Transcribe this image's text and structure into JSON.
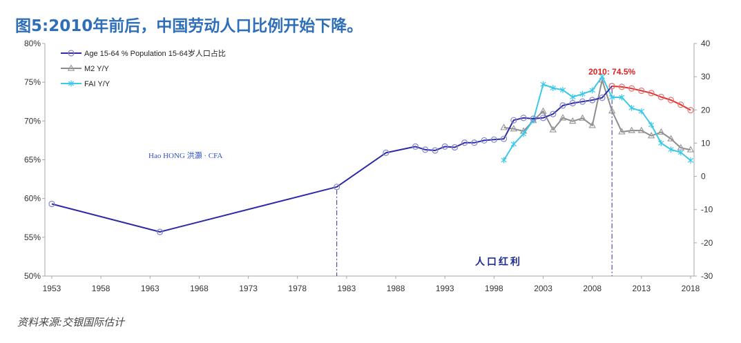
{
  "title": "图5:2010年前后，中国劳动人口比例开始下降。",
  "source": "资料来源:交银国际估计",
  "chart_data": {
    "type": "line",
    "xlim": [
      1952.3,
      2018.35
    ],
    "x_ticks": [
      "1953",
      "1958",
      "1963",
      "1968",
      "1973",
      "1978",
      "1983",
      "1988",
      "1993",
      "1998",
      "2003",
      "2008",
      "2013",
      "2018"
    ],
    "y_left": {
      "range": [
        50,
        80
      ],
      "ticks": [
        "80%",
        "75%",
        "70%",
        "65%",
        "60%",
        "55%",
        "50%"
      ]
    },
    "y_right": {
      "range": [
        -30,
        40
      ],
      "ticks": [
        "40",
        "30",
        "20",
        "10",
        "0",
        "-10",
        "-20",
        "-30"
      ]
    },
    "grid": false,
    "legend_position": "top-left",
    "series": [
      {
        "name": "Age 15-64 % Population 15-64岁人口占比",
        "axis": "left",
        "color": "#2b2ba8",
        "marker_color": "#8484cc",
        "marker": "circle",
        "points": [
          [
            1953,
            59.3
          ],
          [
            1964,
            55.7
          ],
          [
            1982,
            61.5
          ],
          [
            1987,
            65.9
          ],
          [
            1990,
            66.7
          ],
          [
            1991,
            66.3
          ],
          [
            1992,
            66.2
          ],
          [
            1993,
            66.7
          ],
          [
            1994,
            66.6
          ],
          [
            1995,
            67.2
          ],
          [
            1996,
            67.2
          ],
          [
            1997,
            67.5
          ],
          [
            1998,
            67.6
          ],
          [
            1999,
            67.7
          ],
          [
            2000,
            70.1
          ],
          [
            2001,
            70.4
          ],
          [
            2002,
            70.3
          ],
          [
            2003,
            70.4
          ],
          [
            2004,
            70.9
          ],
          [
            2005,
            72.0
          ],
          [
            2006,
            72.3
          ],
          [
            2007,
            72.5
          ],
          [
            2008,
            72.7
          ],
          [
            2009,
            73.0
          ],
          [
            2010,
            74.5
          ]
        ]
      },
      {
        "axis": "left",
        "color": "#e3322c",
        "marker_color": "#e57373",
        "marker": "circle",
        "points": [
          [
            2010,
            74.5
          ],
          [
            2011,
            74.4
          ],
          [
            2012,
            74.2
          ],
          [
            2013,
            73.9
          ],
          [
            2014,
            73.6
          ],
          [
            2015,
            73.1
          ],
          [
            2016,
            72.7
          ],
          [
            2017,
            72.1
          ],
          [
            2018,
            71.4
          ]
        ]
      },
      {
        "name": "M2 Y/Y",
        "axis": "right",
        "color": "#8c8c8c",
        "marker_color": "#9a9a9a",
        "marker": "triangle",
        "points": [
          [
            1999,
            14.7
          ],
          [
            2000,
            14.3
          ],
          [
            2001,
            13.6
          ],
          [
            2002,
            16.8
          ],
          [
            2003,
            19.6
          ],
          [
            2004,
            14.0
          ],
          [
            2005,
            17.6
          ],
          [
            2006,
            16.6
          ],
          [
            2007,
            17.5
          ],
          [
            2008,
            15.3
          ],
          [
            2009,
            29.0
          ],
          [
            2010,
            19.7
          ],
          [
            2011,
            13.4
          ],
          [
            2012,
            13.8
          ],
          [
            2013,
            13.8
          ],
          [
            2014,
            12.2
          ],
          [
            2015,
            13.3
          ],
          [
            2016,
            11.3
          ],
          [
            2017,
            8.6
          ],
          [
            2018,
            8.0
          ]
        ]
      },
      {
        "name": "FAI Y/Y",
        "axis": "right",
        "color": "#3cc8e8",
        "marker_color": "#3cc8e8",
        "marker": "star",
        "points": [
          [
            1999,
            4.9
          ],
          [
            2000,
            9.7
          ],
          [
            2001,
            12.8
          ],
          [
            2002,
            16.9
          ],
          [
            2003,
            27.7
          ],
          [
            2004,
            26.6
          ],
          [
            2005,
            26.0
          ],
          [
            2006,
            23.9
          ],
          [
            2007,
            24.8
          ],
          [
            2008,
            25.9
          ],
          [
            2009,
            30.0
          ],
          [
            2010,
            23.8
          ],
          [
            2011,
            23.8
          ],
          [
            2012,
            20.6
          ],
          [
            2013,
            19.6
          ],
          [
            2014,
            15.5
          ],
          [
            2015,
            10.0
          ],
          [
            2016,
            8.1
          ],
          [
            2017,
            7.2
          ],
          [
            2018,
            4.8
          ]
        ]
      }
    ],
    "reference_lines": [
      {
        "x": 1982
      },
      {
        "x": 2010
      }
    ],
    "reference_line_color": "#2b2ba8",
    "point_labels": [
      {
        "text": "2010: 74.5%",
        "x": 2010,
        "y": 74.5,
        "color": "#e02020"
      }
    ],
    "annotations": [
      "Hao HONG 洪灝 · CFA",
      "人口红利"
    ]
  }
}
